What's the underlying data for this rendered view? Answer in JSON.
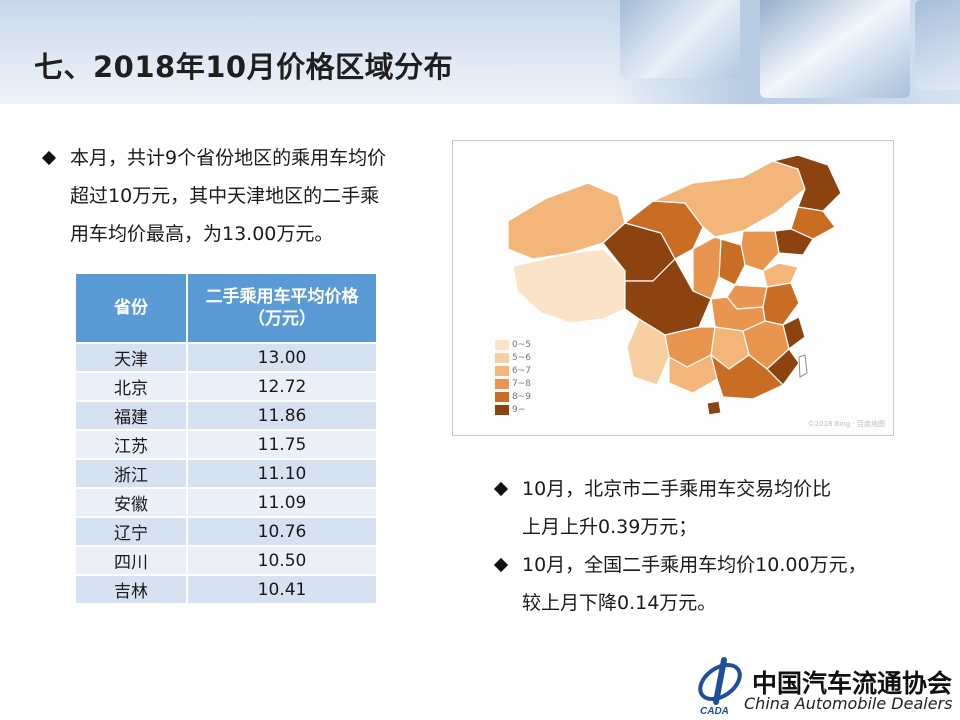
{
  "page": {
    "title": "七、2018年10月价格区域分布"
  },
  "intro": {
    "lines": [
      "本月，共计9个省份地区的乘用车均价",
      "超过10万元，其中天津地区的二手乘",
      "用车均价最高，为13.00万元。"
    ]
  },
  "table": {
    "headers": [
      "省份",
      "二手乘用车平均价格",
      "（万元）"
    ],
    "rows": [
      [
        "天津",
        "13.00"
      ],
      [
        "北京",
        "12.72"
      ],
      [
        "福建",
        "11.86"
      ],
      [
        "江苏",
        "11.75"
      ],
      [
        "浙江",
        "11.10"
      ],
      [
        "安徽",
        "11.09"
      ],
      [
        "辽宁",
        "10.76"
      ],
      [
        "四川",
        "10.50"
      ],
      [
        "吉林",
        "10.41"
      ]
    ]
  },
  "map": {
    "legend": [
      {
        "label": "0~5",
        "color": "#fbe3c8"
      },
      {
        "label": "5~6",
        "color": "#f8cfa2"
      },
      {
        "label": "6~7",
        "color": "#f4b57a"
      },
      {
        "label": "7~8",
        "color": "#e99550"
      },
      {
        "label": "8~9",
        "color": "#c96d24"
      },
      {
        "label": "9~",
        "color": "#8c4310"
      }
    ],
    "watermark": "©2018 Bing · 百度地图"
  },
  "notes": [
    {
      "lines": [
        "10月，北京市二手乘用车交易均价比",
        "上月上升0.39万元；"
      ]
    },
    {
      "lines": [
        "10月，全国二手乘用车均价10.00万元，",
        "较上月下降0.14万元。"
      ]
    }
  ],
  "logo": {
    "cn": "中国汽车流通协会",
    "en": "China  Automobile  Dealers",
    "mark": "CADA"
  },
  "colors": {
    "header_blue": "#5b9bd5",
    "row_a": "#d6e1f1",
    "row_b": "#ebf0f8"
  }
}
